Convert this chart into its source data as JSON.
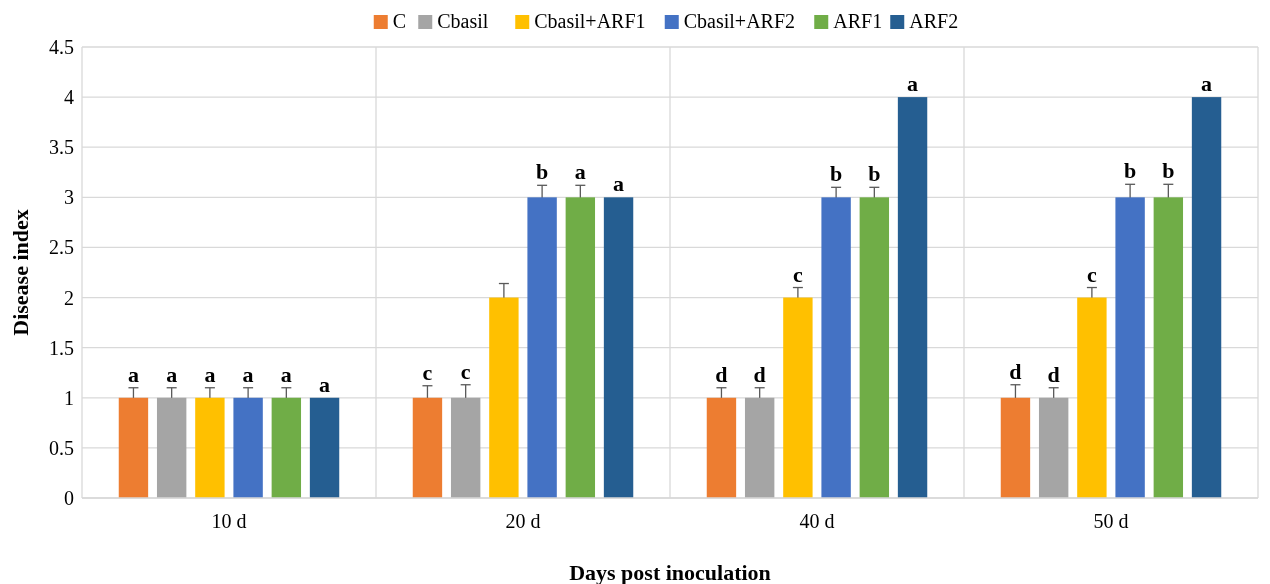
{
  "chart_data": {
    "type": "bar",
    "xlabel": "Days post inoculation",
    "ylabel": "Disease index",
    "categories": [
      "10 d",
      "20 d",
      "40 d",
      "50 d"
    ],
    "ylim": [
      0,
      4.5
    ],
    "yticks": [
      0,
      0.5,
      1,
      1.5,
      2,
      2.5,
      3,
      3.5,
      4,
      4.5
    ],
    "grid": true,
    "legend": "top",
    "series": [
      {
        "name": "C",
        "color": "#ed7d31",
        "values": [
          1,
          1,
          1,
          1
        ],
        "errors": [
          0.1,
          0.12,
          0.1,
          0.13
        ],
        "value_labels": [
          "a",
          "c",
          "d",
          "d"
        ]
      },
      {
        "name": "Cbasil",
        "color": "#a5a5a5",
        "values": [
          1,
          1,
          1,
          1
        ],
        "errors": [
          0.1,
          0.13,
          0.1,
          0.1
        ],
        "value_labels": [
          "a",
          "c",
          "d",
          "d"
        ]
      },
      {
        "name": "Cbasil+ARF1",
        "color": "#ffc000",
        "values": [
          1,
          2,
          2,
          2
        ],
        "errors": [
          0.1,
          0.14,
          0.1,
          0.1
        ],
        "value_labels": [
          "a",
          null,
          "c",
          "c"
        ]
      },
      {
        "name": "Cbasil+ARF2",
        "color": "#4472c4",
        "values": [
          1,
          3,
          3,
          3
        ],
        "errors": [
          0.1,
          0.12,
          0.1,
          0.13
        ],
        "value_labels": [
          "a",
          "b",
          "b",
          "b"
        ]
      },
      {
        "name": "ARF1",
        "color": "#70ad47",
        "values": [
          1,
          3,
          3,
          3
        ],
        "errors": [
          0.1,
          0.12,
          0.1,
          0.13
        ],
        "value_labels": [
          "a",
          "a",
          "b",
          "b"
        ]
      },
      {
        "name": "ARF2",
        "color": "#255e91",
        "values": [
          1,
          3,
          4,
          4
        ],
        "errors": [
          null,
          null,
          null,
          null
        ],
        "value_labels": [
          "a",
          "a",
          "a",
          "a"
        ]
      }
    ]
  }
}
